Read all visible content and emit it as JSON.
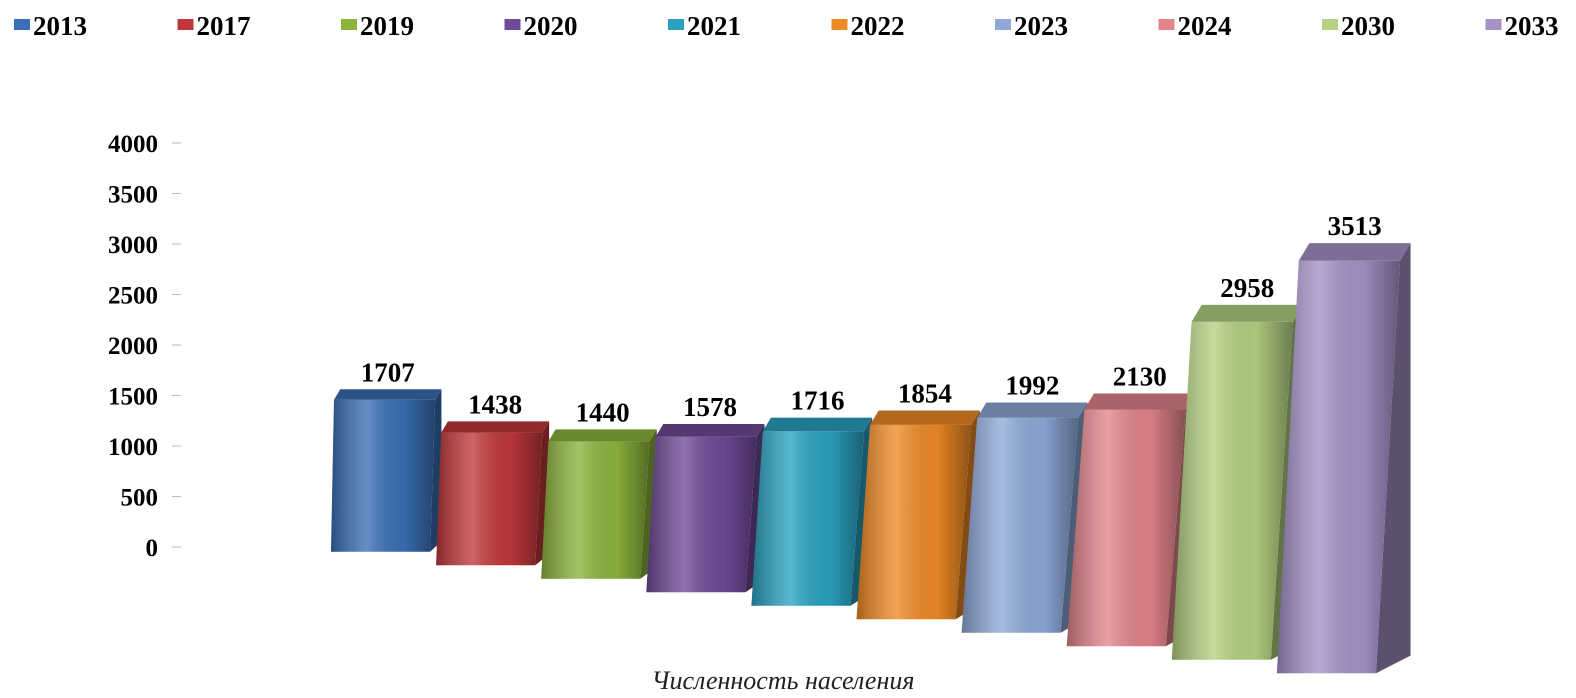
{
  "chart_data": {
    "type": "bar",
    "title": "",
    "xlabel": "Численность населения",
    "ylabel": "",
    "ylim": [
      0,
      4000
    ],
    "yticks": [
      "0",
      "500",
      "1000",
      "1500",
      "2000",
      "2500",
      "3000",
      "3500",
      "4000"
    ],
    "legend_position": "top",
    "categories": [
      "2013",
      "2017",
      "2019",
      "2020",
      "2021",
      "2022",
      "2023",
      "2024",
      "2030",
      "2033"
    ],
    "values": [
      1707,
      1438,
      1440,
      1578,
      1716,
      1854,
      1992,
      2130,
      2958,
      3513
    ],
    "data_labels": [
      "1707",
      "1438",
      "1440",
      "1578",
      "1716",
      "1854",
      "1992",
      "2130",
      "2958",
      "3513"
    ],
    "colors": [
      "#3a6fb5",
      "#c0383a",
      "#8cb43c",
      "#6f4a98",
      "#2aa2bf",
      "#ee8a25",
      "#8ea9d9",
      "#e2848a",
      "#b3d181",
      "#a592c8"
    ],
    "highlight_label_color": "#e00000",
    "highlight_index": 9
  }
}
